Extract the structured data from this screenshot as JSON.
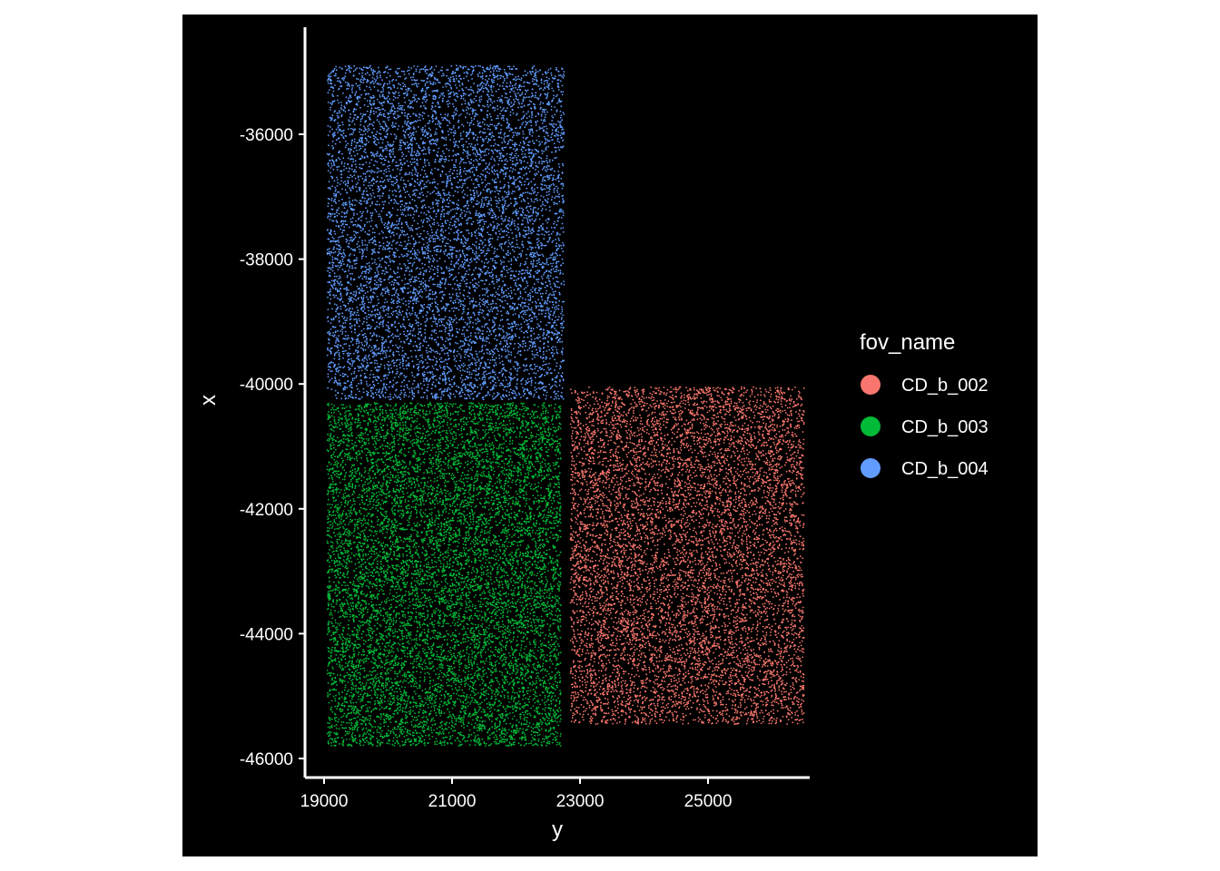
{
  "chart_data": {
    "type": "scatter",
    "title": "",
    "xlabel": "y",
    "ylabel": "x",
    "xlim": [
      18700,
      26800
    ],
    "ylim": [
      -46250,
      -34650
    ],
    "x_ticks": [
      19000,
      21000,
      23000,
      25000
    ],
    "x_tick_labels": [
      "19000",
      "21000",
      "23000",
      "25000"
    ],
    "y_ticks": [
      -36000,
      -38000,
      -40000,
      -42000,
      -44000,
      -46000
    ],
    "y_tick_labels": [
      "-36000",
      "-38000",
      "-40000",
      "-42000",
      "-44000",
      "-46000"
    ],
    "grid": false,
    "background": "#000000",
    "legend": {
      "title": "fov_name",
      "position": "right"
    },
    "series": [
      {
        "name": "CD_b_002",
        "color": "#F8766D",
        "x_range": [
          22850,
          26500
        ],
        "y_range": [
          -45450,
          -40050
        ],
        "approx_points": 9000
      },
      {
        "name": "CD_b_003",
        "color": "#00BA38",
        "x_range": [
          19050,
          22700
        ],
        "y_range": [
          -45800,
          -40300
        ],
        "approx_points": 11000
      },
      {
        "name": "CD_b_004",
        "color": "#619CFF",
        "x_range": [
          19050,
          22750
        ],
        "y_range": [
          -40250,
          -34900
        ],
        "approx_points": 8500
      }
    ]
  }
}
